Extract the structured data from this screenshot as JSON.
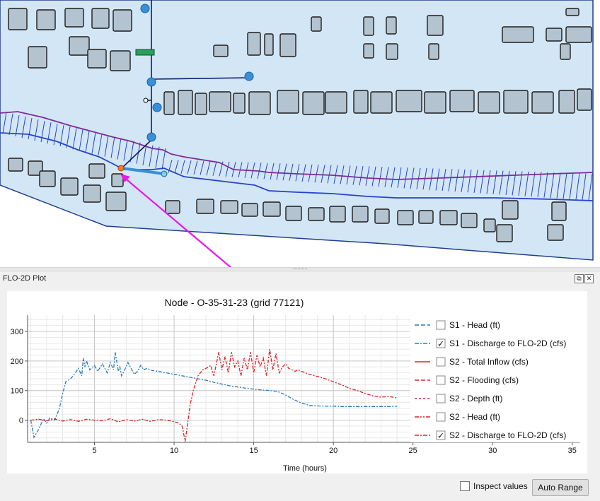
{
  "dock": {
    "title": "FLO-2D Plot",
    "float_glyph": "⧉",
    "close_glyph": "✕"
  },
  "plot": {
    "title": "Node - O-35-31-23 (grid 77121)",
    "xlabel": "Time (hours)"
  },
  "controls": {
    "inspect_label": "Inspect values",
    "inspect_checked": false,
    "auto_range_label": "Auto Range"
  },
  "colors": {
    "blue_series": "#2b7bb9",
    "red_series": "#d62728",
    "map_water": "#d3e6f5",
    "building_fill": "#b4c3d0",
    "annotation": "#e619e6"
  },
  "chart_data": {
    "type": "line",
    "title": "Node - O-35-31-23 (grid 77121)",
    "xlabel": "Time (hours)",
    "ylabel": "",
    "xlim": [
      0.8,
      35.5
    ],
    "ylim": [
      -75,
      355
    ],
    "xticks": [
      5,
      10,
      15,
      20,
      25,
      30,
      35
    ],
    "yticks": [
      0,
      100,
      200,
      300
    ],
    "grid": true,
    "legend_position": "right",
    "legend": [
      {
        "label": "S1 - Head (ft)",
        "checked": false,
        "color": "#2b7bb9",
        "dash": "6,3"
      },
      {
        "label": "S1 - Discharge to FLO-2D (cfs)",
        "checked": true,
        "color": "#2b7bb9",
        "dash": "6,2,2,2"
      },
      {
        "label": "S2 - Total Inflow (cfs)",
        "checked": false,
        "color": "#d62728",
        "dash": ""
      },
      {
        "label": "S2 - Flooding (cfs)",
        "checked": false,
        "color": "#d62728",
        "dash": "6,3"
      },
      {
        "label": "S2 - Depth (ft)",
        "checked": false,
        "color": "#d62728",
        "dash": "3,3"
      },
      {
        "label": "S2 - Head (ft)",
        "checked": false,
        "color": "#d62728",
        "dash": "6,2,2,2,2,2"
      },
      {
        "label": "S2 - Discharge to FLO-2D (cfs)",
        "checked": true,
        "color": "#d62728",
        "dash": "6,2,2,2"
      }
    ],
    "series": [
      {
        "name": "S1 - Discharge to FLO-2D (cfs)",
        "color": "#2b7bb9",
        "x": [
          1.0,
          1.2,
          1.5,
          1.8,
          2.0,
          2.2,
          2.5,
          2.8,
          3.0,
          3.2,
          3.5,
          3.8,
          4.0,
          4.2,
          4.3,
          4.4,
          4.5,
          4.7,
          5.0,
          5.2,
          5.5,
          5.8,
          6.0,
          6.2,
          6.3,
          6.5,
          6.6,
          6.7,
          6.9,
          7.1,
          7.3,
          7.5,
          7.7,
          7.9,
          8.1,
          8.3,
          8.6,
          9.0,
          9.5,
          10.0,
          10.5,
          11.0,
          11.5,
          12.0,
          12.5,
          13.0,
          13.5,
          14.0,
          14.5,
          15.0,
          15.5,
          16.0,
          16.5,
          17.0,
          17.5,
          18.0,
          18.5,
          19.0,
          19.5,
          20.0,
          20.5,
          21.0,
          21.5,
          22.0,
          22.5,
          23.0,
          23.5,
          24.0
        ],
        "y": [
          0,
          -58,
          -30,
          5,
          -10,
          8,
          0,
          40,
          90,
          130,
          140,
          160,
          175,
          150,
          210,
          180,
          200,
          170,
          185,
          165,
          190,
          160,
          195,
          170,
          230,
          165,
          180,
          150,
          170,
          195,
          175,
          155,
          165,
          185,
          170,
          175,
          168,
          165,
          160,
          155,
          150,
          145,
          140,
          135,
          128,
          122,
          116,
          112,
          108,
          105,
          102,
          100,
          97,
          85,
          70,
          58,
          50,
          48,
          47,
          47,
          46,
          46,
          46,
          46,
          46,
          46,
          46,
          47
        ]
      },
      {
        "name": "S2 - Discharge to FLO-2D (cfs)",
        "color": "#d62728",
        "x": [
          1.0,
          1.5,
          2.0,
          2.5,
          3.0,
          3.5,
          4.0,
          4.5,
          5.0,
          5.5,
          6.0,
          6.5,
          7.0,
          7.5,
          8.0,
          8.5,
          9.0,
          9.5,
          10.0,
          10.3,
          10.5,
          10.7,
          10.8,
          11.0,
          11.2,
          11.5,
          11.8,
          12.0,
          12.3,
          12.5,
          12.8,
          13.0,
          13.2,
          13.4,
          13.6,
          13.8,
          14.0,
          14.2,
          14.4,
          14.6,
          14.8,
          15.0,
          15.2,
          15.4,
          15.6,
          15.8,
          16.0,
          16.2,
          16.4,
          16.6,
          16.8,
          17.0,
          17.2,
          17.4,
          17.6,
          17.8,
          18.0,
          18.5,
          19.0,
          19.5,
          20.0,
          20.5,
          21.0,
          21.5,
          22.0,
          22.5,
          23.0,
          23.5,
          24.0
        ],
        "y": [
          0,
          3,
          -2,
          4,
          -3,
          2,
          -4,
          3,
          0,
          -2,
          5,
          -6,
          2,
          -3,
          3,
          -4,
          2,
          0,
          -5,
          -10,
          -20,
          -72,
          -30,
          50,
          100,
          150,
          170,
          175,
          185,
          150,
          230,
          170,
          215,
          160,
          230,
          180,
          200,
          150,
          210,
          170,
          230,
          160,
          220,
          180,
          210,
          150,
          240,
          170,
          225,
          160,
          180,
          190,
          175,
          170,
          165,
          170,
          165,
          155,
          148,
          140,
          130,
          120,
          108,
          100,
          90,
          82,
          78,
          80,
          75
        ]
      }
    ]
  }
}
